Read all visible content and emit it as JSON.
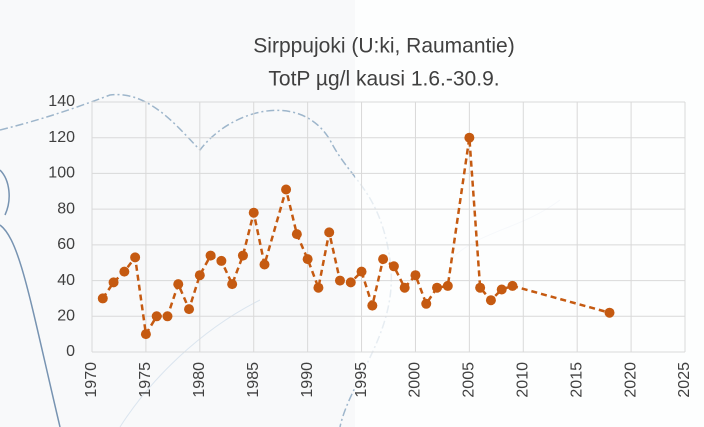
{
  "chart_data": {
    "type": "line",
    "title": "Sirppujoki (U:ki, Raumantie)",
    "subtitle": "TotP µg/l kausi 1.6.-30.9.",
    "x": [
      1971,
      1972,
      1973,
      1974,
      1975,
      1976,
      1977,
      1978,
      1979,
      1980,
      1981,
      1982,
      1983,
      1984,
      1985,
      1986,
      1988,
      1989,
      1990,
      1991,
      1992,
      1993,
      1994,
      1995,
      1996,
      1997,
      1998,
      1999,
      2000,
      2001,
      2002,
      2003,
      2005,
      2006,
      2007,
      2008,
      2009,
      2018
    ],
    "values": [
      30,
      39,
      45,
      53,
      10,
      20,
      20,
      38,
      24,
      43,
      54,
      51,
      38,
      54,
      78,
      49,
      91,
      66,
      52,
      36,
      67,
      40,
      39,
      45,
      26,
      52,
      48,
      36,
      43,
      27,
      36,
      37,
      120,
      36,
      29,
      35,
      37,
      22
    ],
    "color": "#c55a11",
    "xlim": [
      1970,
      2025
    ],
    "xticks": [
      1970,
      1975,
      1980,
      1985,
      1990,
      1995,
      2000,
      2005,
      2010,
      2015,
      2020,
      2025
    ],
    "ylim": [
      0,
      140
    ],
    "yticks": [
      0,
      20,
      40,
      60,
      80,
      100,
      120,
      140
    ],
    "grid": true
  }
}
